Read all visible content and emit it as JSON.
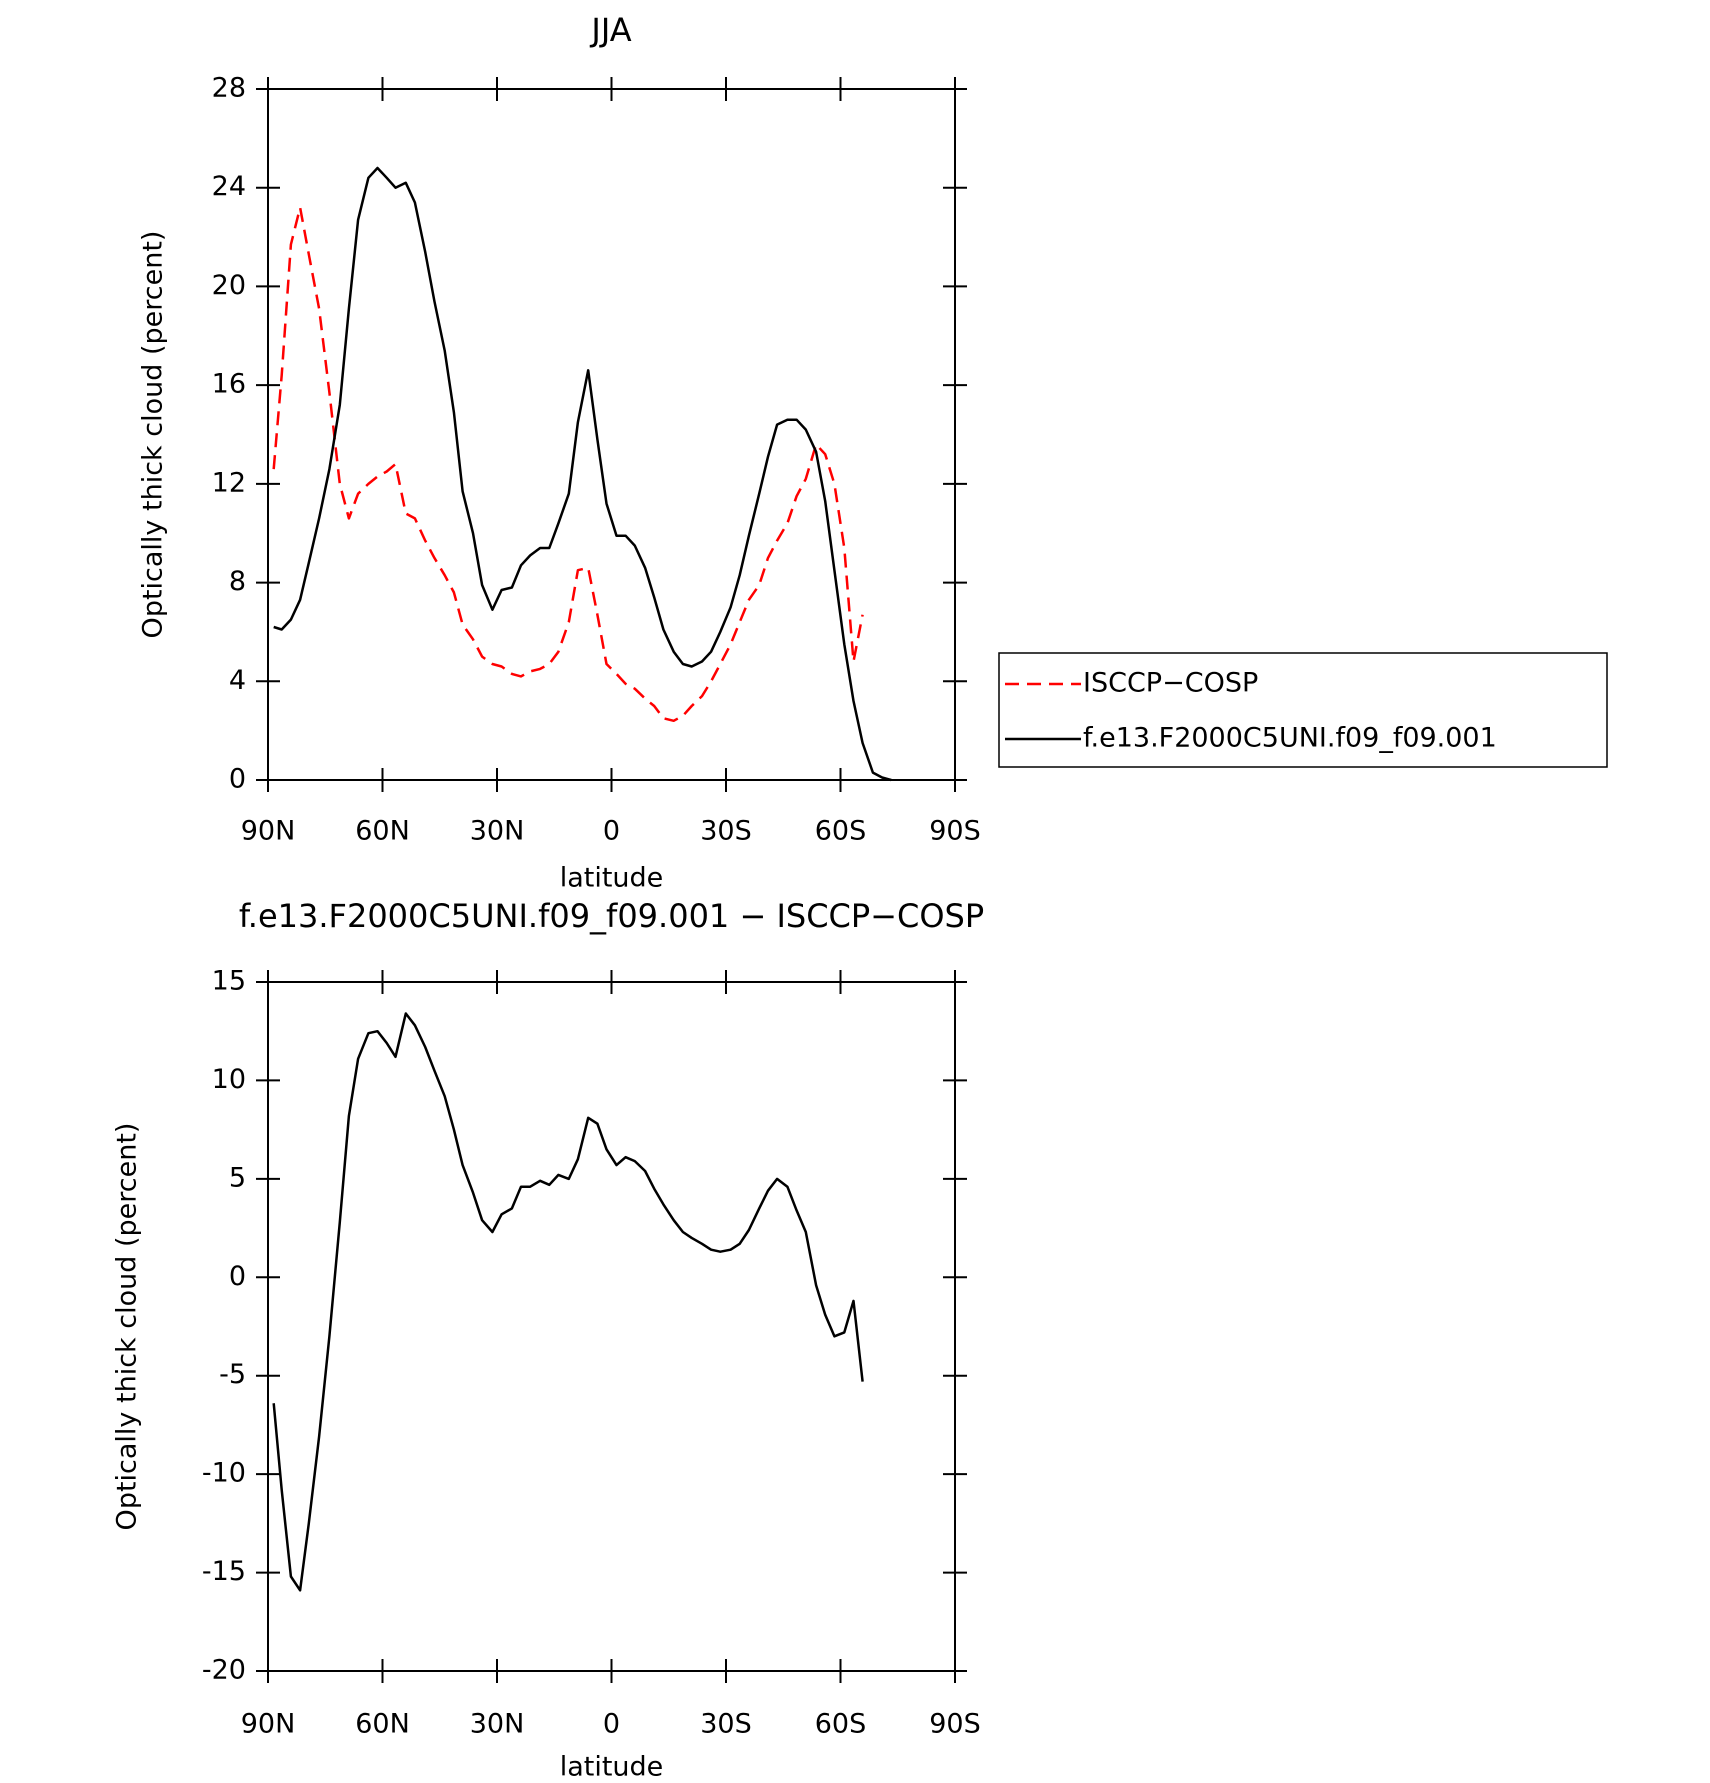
{
  "chart_data": [
    {
      "type": "line",
      "title": "JJA",
      "xlabel": "latitude",
      "ylabel": "Optically thick cloud (percent)",
      "x": [
        88.5,
        86.4,
        84,
        81.6,
        79.3,
        76.6,
        73.9,
        71.2,
        68.8,
        66.4,
        63.7,
        61.3,
        58.9,
        56.6,
        53.9,
        51.5,
        48.8,
        46.4,
        43.7,
        41.3,
        39.0,
        36.3,
        33.9,
        31.2,
        28.8,
        26.1,
        23.7,
        21.3,
        18.7,
        16.3,
        13.9,
        11.2,
        8.8,
        6.1,
        3.7,
        1.3,
        -1.3,
        -3.7,
        -6.1,
        -8.8,
        -11.2,
        -13.6,
        -16.3,
        -18.7,
        -21.0,
        -23.7,
        -26.1,
        -28.5,
        -31.2,
        -33.6,
        -36.0,
        -38.7,
        -41.0,
        -43.4,
        -46.1,
        -48.5,
        -50.9,
        -53.6,
        -56.0,
        -58.4,
        -61.0,
        -63.4,
        -65.8,
        -68.5,
        -70.9,
        -73.3
      ],
      "series": [
        {
          "name": "ISCCP−COSP",
          "color": "#ff0000",
          "style": "dashed",
          "values": [
            12.6,
            16.4,
            21.7,
            23.2,
            21.3,
            19.1,
            15.7,
            12.0,
            10.6,
            11.6,
            12.0,
            12.3,
            12.5,
            12.8,
            10.8,
            10.6,
            9.7,
            9.0,
            8.3,
            7.6,
            6.3,
            5.7,
            5.0,
            4.7,
            4.6,
            4.3,
            4.2,
            4.4,
            4.5,
            4.7,
            5.2,
            6.4,
            8.5,
            8.6,
            6.7,
            4.7,
            4.3,
            3.9,
            3.7,
            3.3,
            3.0,
            2.5,
            2.4,
            2.6,
            3.0,
            3.4,
            4.0,
            4.7,
            5.5,
            6.4,
            7.3,
            7.9,
            9.0,
            9.7,
            10.4,
            11.5,
            12.2,
            13.6,
            13.2,
            12.0,
            9.4,
            4.8,
            6.7,
            null,
            null,
            null
          ]
        },
        {
          "name": "f.e13.F2000C5UNI.f09_f09.001",
          "color": "#000000",
          "style": "solid",
          "values": [
            6.2,
            6.1,
            6.5,
            7.3,
            8.8,
            10.6,
            12.6,
            15.2,
            19.1,
            22.7,
            24.4,
            24.8,
            24.4,
            24.0,
            24.2,
            23.4,
            21.4,
            19.4,
            17.4,
            14.9,
            11.7,
            10.0,
            7.9,
            6.9,
            7.7,
            7.8,
            8.7,
            9.1,
            9.4,
            9.4,
            10.4,
            11.6,
            14.5,
            16.6,
            13.8,
            11.2,
            9.9,
            9.9,
            9.5,
            8.6,
            7.4,
            6.1,
            5.2,
            4.7,
            4.6,
            4.8,
            5.2,
            6.0,
            7.0,
            8.3,
            9.9,
            11.6,
            13.1,
            14.4,
            14.6,
            14.6,
            14.2,
            13.3,
            11.3,
            8.5,
            5.5,
            3.2,
            1.5,
            0.3,
            0.1,
            0.0
          ]
        }
      ],
      "xlim": [
        90,
        -90
      ],
      "xticks": [
        {
          "value": 90,
          "label": "90N"
        },
        {
          "value": 60,
          "label": "60N"
        },
        {
          "value": 30,
          "label": "30N"
        },
        0,
        {
          "value": -30,
          "label": "30S"
        },
        {
          "value": -60,
          "label": "60S"
        },
        {
          "value": -90,
          "label": "90S"
        }
      ],
      "ylim": [
        0,
        28
      ],
      "yticks": [
        0,
        4,
        8,
        12,
        16,
        20,
        24,
        28
      ],
      "legend": "right"
    },
    {
      "type": "line",
      "title": "f.e13.F2000C5UNI.f09_f09.001 − ISCCP−COSP",
      "xlabel": "latitude",
      "ylabel": "Optically thick cloud (percent)",
      "x": [
        88.5,
        86.4,
        84,
        81.6,
        79.3,
        76.6,
        73.9,
        71.2,
        68.8,
        66.4,
        63.7,
        61.3,
        58.9,
        56.6,
        53.9,
        51.5,
        48.8,
        46.4,
        43.7,
        41.3,
        39.0,
        36.3,
        33.9,
        31.2,
        28.8,
        26.1,
        23.7,
        21.3,
        18.7,
        16.3,
        13.9,
        11.2,
        8.8,
        6.1,
        3.7,
        1.3,
        -1.3,
        -3.7,
        -6.1,
        -8.8,
        -11.2,
        -13.6,
        -16.3,
        -18.7,
        -21.0,
        -23.7,
        -26.1,
        -28.5,
        -31.2,
        -33.6,
        -36.0,
        -38.7,
        -41.0,
        -43.4,
        -46.1,
        -48.5,
        -50.9,
        -53.6,
        -56.0,
        -58.4,
        -61.0,
        -63.4,
        -65.8
      ],
      "series": [
        {
          "color": "#000000",
          "style": "solid",
          "values": [
            -6.4,
            -10.8,
            -15.2,
            -15.9,
            -12.5,
            -8.1,
            -3.0,
            2.8,
            8.2,
            11.1,
            12.4,
            12.5,
            11.9,
            11.2,
            13.4,
            12.8,
            11.7,
            10.5,
            9.2,
            7.5,
            5.7,
            4.3,
            2.9,
            2.3,
            3.2,
            3.5,
            4.6,
            4.6,
            4.9,
            4.7,
            5.2,
            5.0,
            6.0,
            8.1,
            7.8,
            6.5,
            5.7,
            6.1,
            5.9,
            5.4,
            4.5,
            3.7,
            2.9,
            2.3,
            2.0,
            1.7,
            1.4,
            1.3,
            1.4,
            1.7,
            2.4,
            3.5,
            4.4,
            5.0,
            4.6,
            3.4,
            2.3,
            -0.4,
            -1.9,
            -3.0,
            -2.8,
            -1.2,
            -5.3
          ]
        }
      ],
      "xlim": [
        90,
        -90
      ],
      "xticks": [
        {
          "value": 90,
          "label": "90N"
        },
        {
          "value": 60,
          "label": "60N"
        },
        {
          "value": 30,
          "label": "30N"
        },
        0,
        {
          "value": -30,
          "label": "30S"
        },
        {
          "value": -60,
          "label": "60S"
        },
        {
          "value": -90,
          "label": "90S"
        }
      ],
      "ylim": [
        -20,
        15
      ],
      "yticks": [
        -20,
        -15,
        -10,
        -5,
        0,
        5,
        10,
        15
      ]
    }
  ]
}
